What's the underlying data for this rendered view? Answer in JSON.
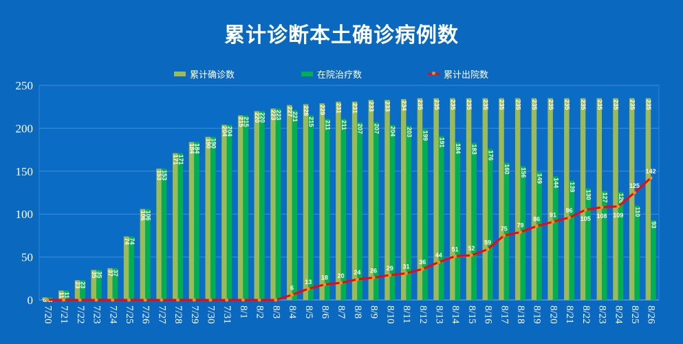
{
  "chart_data": {
    "type": "bar",
    "title": "累计诊断本土确诊病例数",
    "xlabel": "",
    "ylabel": "",
    "ylim": [
      0,
      250
    ],
    "yticks": [
      0,
      50,
      100,
      150,
      200,
      250
    ],
    "grid": true,
    "legend_position": "top",
    "categories": [
      "7/20",
      "7/21",
      "7/22",
      "7/23",
      "7/24",
      "7/25",
      "7/26",
      "7/27",
      "7/28",
      "7/29",
      "7/30",
      "7/31",
      "8/1",
      "8/2",
      "8/3",
      "8/4",
      "8/5",
      "8/6",
      "8/7",
      "8/8",
      "8/9",
      "8/10",
      "8/11",
      "8/12",
      "8/13",
      "8/14",
      "8/15",
      "8/16",
      "8/17",
      "8/18",
      "8/19",
      "8/20",
      "8/21",
      "8/22",
      "8/23",
      "8/24",
      "8/25",
      "8/26"
    ],
    "series": [
      {
        "name": "累计确诊数",
        "type": "bar",
        "color": "#9bbb59",
        "values": [
          3,
          11,
          23,
          35,
          37,
          74,
          106,
          153,
          171,
          184,
          190,
          204,
          215,
          220,
          223,
          227,
          228,
          229,
          231,
          231,
          233,
          233,
          234,
          235,
          235,
          235,
          235,
          235,
          235,
          235,
          235,
          235,
          235,
          235,
          235,
          235,
          235,
          235
        ]
      },
      {
        "name": "在院治疗数",
        "type": "bar",
        "color": "#00b050",
        "values": [
          3,
          11,
          23,
          35,
          37,
          74,
          106,
          153,
          171,
          184,
          190,
          204,
          215,
          220,
          223,
          221,
          215,
          211,
          211,
          207,
          207,
          204,
          203,
          199,
          191,
          184,
          183,
          176,
          160,
          156,
          149,
          144,
          139,
          130,
          127,
          126,
          110,
          93
        ]
      },
      {
        "name": "累计出院数",
        "type": "line",
        "color": "#ff0000",
        "marker_color": "#f28c28",
        "values": [
          0,
          0,
          0,
          0,
          0,
          0,
          0,
          0,
          0,
          0,
          0,
          0,
          0,
          0,
          0,
          6,
          13,
          18,
          20,
          24,
          26,
          29,
          31,
          36,
          44,
          51,
          52,
          59,
          75,
          79,
          86,
          91,
          96,
          105,
          108,
          109,
          125,
          142
        ]
      }
    ]
  }
}
